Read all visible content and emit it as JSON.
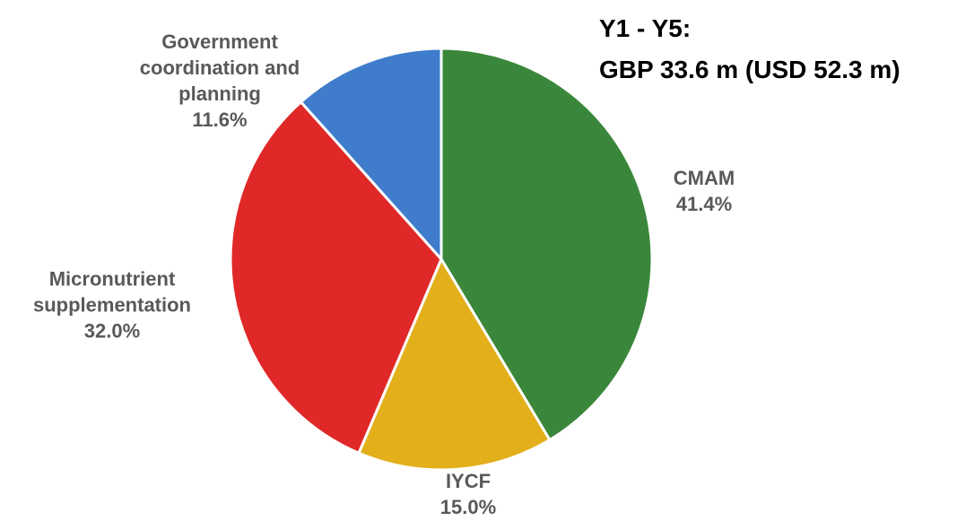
{
  "chart_data": {
    "type": "pie",
    "title": "Y1 - Y5:",
    "subtitle": "GBP 33.6 m (USD 52.3 m)",
    "categories": [
      "CMAM",
      "IYCF",
      "Micronutrient supplementation",
      "Government coordination and planning"
    ],
    "values": [
      41.4,
      15.0,
      32.0,
      11.6
    ],
    "value_labels": [
      "41.4%",
      "15.0%",
      "32.0%",
      "11.6%"
    ],
    "colors": [
      "#3a873b",
      "#e3b01c",
      "#e02828",
      "#3f7dcc"
    ]
  }
}
